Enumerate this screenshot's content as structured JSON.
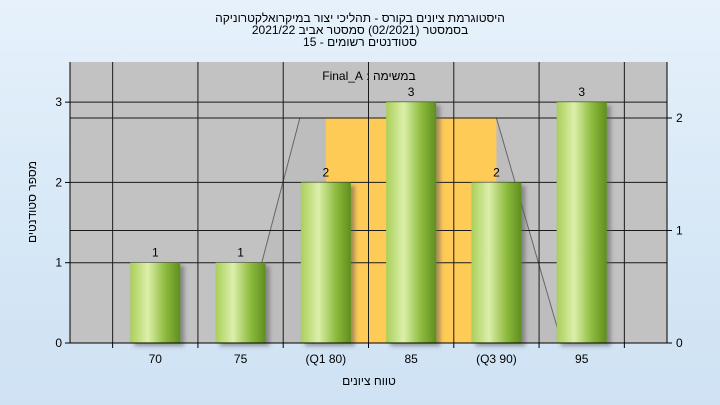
{
  "chart_data": {
    "type": "bar",
    "title_lines": [
      "היסטוגרמת ציונים בקורס - תהליכי יצור במיקרואלקטרוניקה",
      "בסמסטר  (02/2021)  סמסטר אביב 2021/22",
      "סטודנטים רשומים - 15"
    ],
    "categories": [
      "70",
      "75",
      "(Q1 80)",
      "85",
      "(Q3 90)",
      "95"
    ],
    "values": [
      1,
      1,
      2,
      3,
      2,
      3
    ],
    "xlabel": "טווח ציונים",
    "ylabel": "מספר סטודנטים",
    "ylim": [
      0,
      3.5
    ],
    "yticks": [
      "0",
      "1",
      "2",
      "3"
    ],
    "y2ticks": [
      "0",
      "1",
      "2"
    ],
    "legend": "במשימה : Final_A",
    "grid": true,
    "colors": {
      "plot_bg": "#c2c2c2",
      "band": "#ffcb57",
      "bar_light": "#dcefaa",
      "bar_dark": "#5f8e1e"
    }
  }
}
